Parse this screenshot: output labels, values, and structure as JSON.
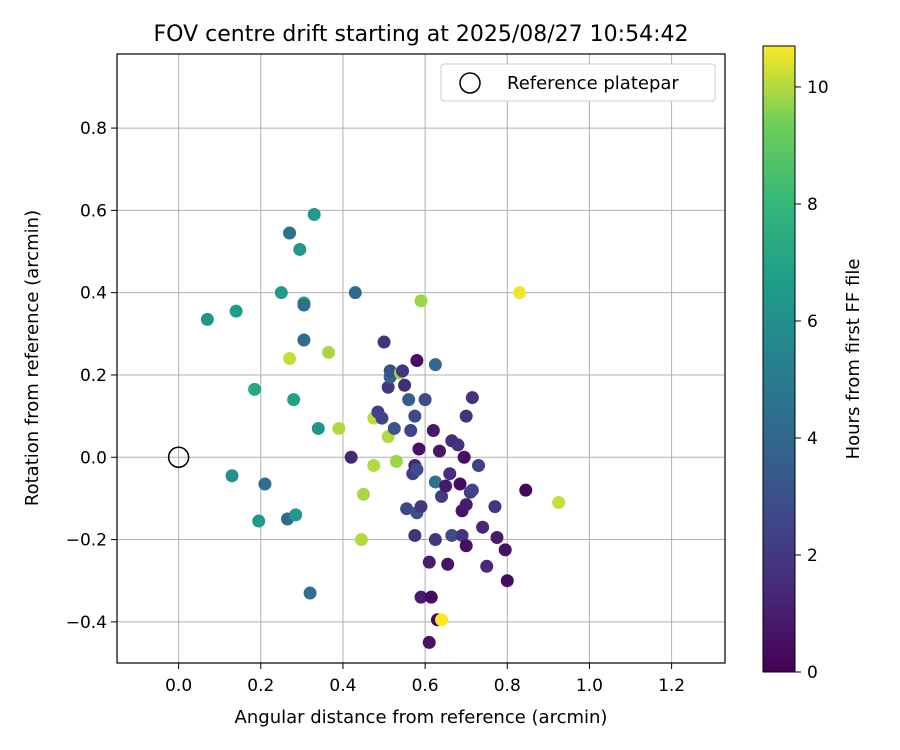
{
  "chart_data": {
    "type": "scatter",
    "title": "FOV centre drift starting at 2025/08/27 10:54:42",
    "xlabel": "Angular distance from reference (arcmin)",
    "ylabel": "Rotation from reference (arcmin)",
    "xlim": [
      -0.15,
      1.33
    ],
    "ylim": [
      -0.5,
      0.98
    ],
    "xticks": [
      "0.0",
      "0.2",
      "0.4",
      "0.6",
      "0.8",
      "1.0",
      "1.2"
    ],
    "yticks": [
      "−0.4",
      "−0.2",
      "0.0",
      "0.2",
      "0.4",
      "0.6",
      "0.8"
    ],
    "grid": true,
    "legend": {
      "position": "top-right",
      "entries": [
        "Reference platepar"
      ]
    },
    "reference_point": {
      "x": 0.0,
      "y": 0.0
    },
    "colorbar": {
      "label": "Hours from first FF file",
      "colormap": "viridis",
      "range": [
        0,
        10.7
      ],
      "ticks": [
        "0",
        "2",
        "4",
        "6",
        "8",
        "10"
      ]
    },
    "points": [
      {
        "x": 0.33,
        "y": 0.59,
        "h": 6.5
      },
      {
        "x": 0.27,
        "y": 0.545,
        "h": 4.6
      },
      {
        "x": 0.295,
        "y": 0.505,
        "h": 6.4
      },
      {
        "x": 0.25,
        "y": 0.4,
        "h": 6.6
      },
      {
        "x": 0.305,
        "y": 0.375,
        "h": 6.8
      },
      {
        "x": 0.305,
        "y": 0.37,
        "h": 4.4
      },
      {
        "x": 0.07,
        "y": 0.335,
        "h": 6.2
      },
      {
        "x": 0.14,
        "y": 0.355,
        "h": 6.6
      },
      {
        "x": 0.305,
        "y": 0.285,
        "h": 4.2
      },
      {
        "x": 0.43,
        "y": 0.4,
        "h": 4.0
      },
      {
        "x": 0.59,
        "y": 0.38,
        "h": 9.8
      },
      {
        "x": 0.83,
        "y": 0.4,
        "h": 10.6
      },
      {
        "x": 0.27,
        "y": 0.24,
        "h": 10.2
      },
      {
        "x": 0.365,
        "y": 0.255,
        "h": 9.9
      },
      {
        "x": 0.185,
        "y": 0.165,
        "h": 7.2
      },
      {
        "x": 0.28,
        "y": 0.14,
        "h": 6.8
      },
      {
        "x": 0.34,
        "y": 0.07,
        "h": 6.3
      },
      {
        "x": 0.39,
        "y": 0.07,
        "h": 10.0
      },
      {
        "x": 0.13,
        "y": -0.045,
        "h": 6.0
      },
      {
        "x": 0.21,
        "y": -0.065,
        "h": 4.3
      },
      {
        "x": 0.195,
        "y": -0.155,
        "h": 6.5
      },
      {
        "x": 0.265,
        "y": -0.15,
        "h": 4.2
      },
      {
        "x": 0.285,
        "y": -0.14,
        "h": 6.4
      },
      {
        "x": 0.32,
        "y": -0.33,
        "h": 4.2
      },
      {
        "x": 0.42,
        "y": 0.0,
        "h": 1.3
      },
      {
        "x": 0.45,
        "y": -0.09,
        "h": 9.9
      },
      {
        "x": 0.445,
        "y": -0.2,
        "h": 10.0
      },
      {
        "x": 0.475,
        "y": -0.02,
        "h": 10.0
      },
      {
        "x": 0.475,
        "y": 0.095,
        "h": 10.1
      },
      {
        "x": 0.485,
        "y": 0.11,
        "h": 2.4
      },
      {
        "x": 0.495,
        "y": 0.095,
        "h": 2.5
      },
      {
        "x": 0.5,
        "y": 0.28,
        "h": 1.8
      },
      {
        "x": 0.51,
        "y": 0.17,
        "h": 2.0
      },
      {
        "x": 0.51,
        "y": 0.05,
        "h": 10.0
      },
      {
        "x": 0.515,
        "y": 0.195,
        "h": 3.8
      },
      {
        "x": 0.515,
        "y": 0.21,
        "h": 3.0
      },
      {
        "x": 0.525,
        "y": 0.07,
        "h": 3.2
      },
      {
        "x": 0.53,
        "y": -0.01,
        "h": 9.8
      },
      {
        "x": 0.54,
        "y": 0.205,
        "h": 9.7
      },
      {
        "x": 0.545,
        "y": 0.21,
        "h": 2.0
      },
      {
        "x": 0.55,
        "y": 0.175,
        "h": 1.5
      },
      {
        "x": 0.555,
        "y": -0.125,
        "h": 2.6
      },
      {
        "x": 0.56,
        "y": 0.14,
        "h": 3.5
      },
      {
        "x": 0.565,
        "y": 0.065,
        "h": 2.5
      },
      {
        "x": 0.57,
        "y": -0.04,
        "h": 2.2
      },
      {
        "x": 0.575,
        "y": 0.1,
        "h": 2.8
      },
      {
        "x": 0.575,
        "y": -0.19,
        "h": 1.8
      },
      {
        "x": 0.575,
        "y": -0.02,
        "h": 1.3
      },
      {
        "x": 0.58,
        "y": 0.235,
        "h": 0.5
      },
      {
        "x": 0.58,
        "y": -0.03,
        "h": 2.7
      },
      {
        "x": 0.58,
        "y": -0.135,
        "h": 3.0
      },
      {
        "x": 0.585,
        "y": 0.02,
        "h": 0.6
      },
      {
        "x": 0.59,
        "y": -0.12,
        "h": 2.0
      },
      {
        "x": 0.59,
        "y": -0.34,
        "h": 1.0
      },
      {
        "x": 0.6,
        "y": 0.14,
        "h": 2.8
      },
      {
        "x": 0.61,
        "y": -0.255,
        "h": 1.0
      },
      {
        "x": 0.61,
        "y": -0.45,
        "h": 0.6
      },
      {
        "x": 0.615,
        "y": -0.34,
        "h": 0.4
      },
      {
        "x": 0.62,
        "y": 0.065,
        "h": 0.8
      },
      {
        "x": 0.625,
        "y": 0.225,
        "h": 4.0
      },
      {
        "x": 0.625,
        "y": -0.2,
        "h": 2.0
      },
      {
        "x": 0.625,
        "y": -0.06,
        "h": 4.5
      },
      {
        "x": 0.63,
        "y": -0.395,
        "h": 0.3
      },
      {
        "x": 0.635,
        "y": 0.015,
        "h": 0.8
      },
      {
        "x": 0.64,
        "y": -0.095,
        "h": 2.2
      },
      {
        "x": 0.64,
        "y": -0.395,
        "h": 10.7
      },
      {
        "x": 0.65,
        "y": -0.07,
        "h": 0.9
      },
      {
        "x": 0.655,
        "y": -0.26,
        "h": 0.7
      },
      {
        "x": 0.66,
        "y": -0.04,
        "h": 1.5
      },
      {
        "x": 0.665,
        "y": 0.04,
        "h": 1.6
      },
      {
        "x": 0.665,
        "y": -0.19,
        "h": 2.8
      },
      {
        "x": 0.68,
        "y": 0.03,
        "h": 1.7
      },
      {
        "x": 0.685,
        "y": -0.065,
        "h": 0.4
      },
      {
        "x": 0.69,
        "y": -0.19,
        "h": 1.8
      },
      {
        "x": 0.69,
        "y": -0.13,
        "h": 0.7
      },
      {
        "x": 0.695,
        "y": 0.0,
        "h": 0.5
      },
      {
        "x": 0.7,
        "y": 0.1,
        "h": 1.8
      },
      {
        "x": 0.7,
        "y": -0.215,
        "h": 0.5
      },
      {
        "x": 0.7,
        "y": -0.115,
        "h": 1.0
      },
      {
        "x": 0.71,
        "y": -0.085,
        "h": 2.2
      },
      {
        "x": 0.715,
        "y": -0.08,
        "h": 2.6
      },
      {
        "x": 0.715,
        "y": 0.145,
        "h": 1.7
      },
      {
        "x": 0.73,
        "y": -0.02,
        "h": 2.4
      },
      {
        "x": 0.74,
        "y": -0.17,
        "h": 1.3
      },
      {
        "x": 0.75,
        "y": -0.265,
        "h": 1.4
      },
      {
        "x": 0.77,
        "y": -0.12,
        "h": 2.0
      },
      {
        "x": 0.775,
        "y": -0.195,
        "h": 0.9
      },
      {
        "x": 0.795,
        "y": -0.225,
        "h": 0.6
      },
      {
        "x": 0.8,
        "y": -0.3,
        "h": 0.4
      },
      {
        "x": 0.845,
        "y": -0.08,
        "h": 0.2
      },
      {
        "x": 0.925,
        "y": -0.11,
        "h": 10.2
      }
    ]
  }
}
